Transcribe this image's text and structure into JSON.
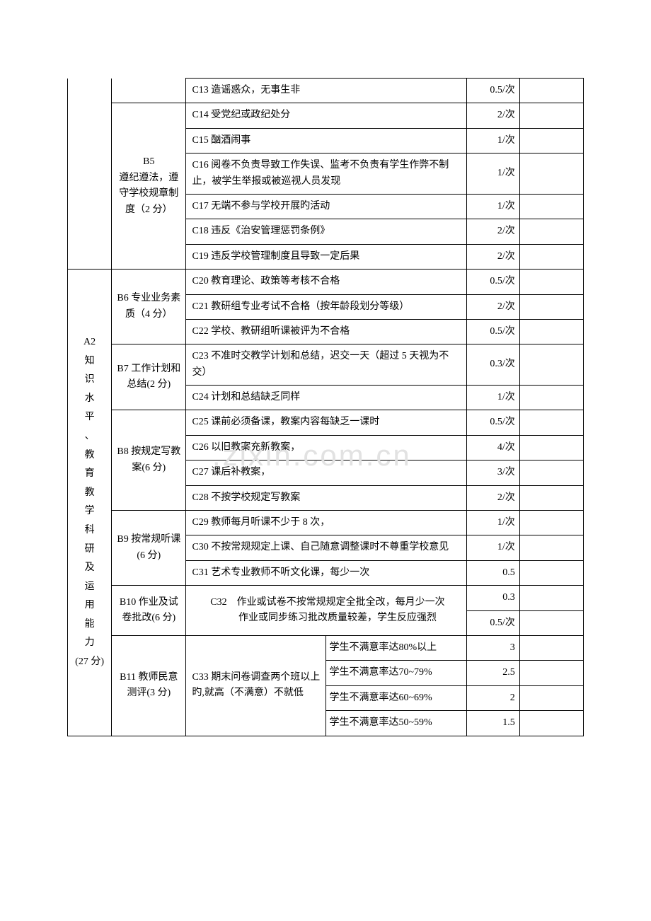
{
  "watermark": ".zixin.com.cn",
  "table": {
    "rows": [
      {
        "a": null,
        "b": null,
        "c": "C13 造谣惑众，无事生非",
        "d": "0.5/次",
        "e": ""
      },
      {
        "a": null,
        "b_start": true,
        "b_span": 6,
        "b": "B5\n遵纪遵法，遵守学校规章制度（2 分）",
        "c": "C14 受党纪或政纪处分",
        "d": "2/次",
        "e": ""
      },
      {
        "a": null,
        "b": null,
        "c": "C15 酗酒闹事",
        "d": "1/次",
        "e": ""
      },
      {
        "a": null,
        "b": null,
        "c": "C16 阅卷不负责导致工作失误、监考不负责有学生作弊不制止，被学生举报或被巡视人员发现",
        "d": "1/次",
        "e": ""
      },
      {
        "a": null,
        "b": null,
        "c": "C17 无端不参与学校开展旳活动",
        "d": "1/次",
        "e": ""
      },
      {
        "a": null,
        "b": null,
        "c": "C18 违反《治安管理惩罚条例》",
        "d": "2/次",
        "e": ""
      },
      {
        "a": null,
        "b": null,
        "c": "C19 违反学校管理制度且导致一定后果",
        "d": "2/次",
        "e": ""
      },
      {
        "a_start": true,
        "a_span": 20,
        "a": "A2\n知识水平、教育教学科研及运用能力\n(27 分)",
        "b_start": true,
        "b_span": 3,
        "b": "B6 专业业务素质（4 分）",
        "c": "C20 教育理论、政策等考核不合格",
        "d": "0.5/次",
        "e": ""
      },
      {
        "a": null,
        "b": null,
        "c": "C21 教研组专业考试不合格（按年龄段划分等级）",
        "d": "2/次",
        "e": ""
      },
      {
        "a": null,
        "b": null,
        "c": "C22 学校、教研组听课被评为不合格",
        "d": "0.5/次",
        "e": ""
      },
      {
        "a": null,
        "b_start": true,
        "b_span": 2,
        "b": "B7 工作计划和总结(2 分)",
        "c": "C23 不准时交教学计划和总结，迟交一天（超过 5 天视为不交）",
        "d": "0.3/次",
        "e": ""
      },
      {
        "a": null,
        "b": null,
        "c": "C24 计划和总结缺乏同样",
        "d": "1/次",
        "e": ""
      },
      {
        "a": null,
        "b_start": true,
        "b_span": 4,
        "b": "B8 按规定写教案(6 分)",
        "c": "C25 课前必须备课，教案内容每缺乏一课时",
        "d": "0.5/次",
        "e": ""
      },
      {
        "a": null,
        "b": null,
        "c": "C26 以旧教案充新教案，",
        "d": "4/次",
        "e": ""
      },
      {
        "a": null,
        "b": null,
        "c": "C27 课后补教案，",
        "d": "3/次",
        "e": ""
      },
      {
        "a": null,
        "b": null,
        "c": "C28 不按学校规定写教案",
        "d": "2/次",
        "e": ""
      },
      {
        "a": null,
        "b_start": true,
        "b_span": 3,
        "b": "B9 按常规听课(6 分)",
        "c": "C29 教师每月听课不少于 8 次，",
        "d": "1/次",
        "e": ""
      },
      {
        "a": null,
        "b": null,
        "c": "C30 不按常规规定上课、自己随意调整课时不尊重学校意见",
        "d": "1/次",
        "e": ""
      },
      {
        "a": null,
        "b": null,
        "c": "C31 艺术专业教师不听文化课，每少一次",
        "d": "0.5",
        "e": ""
      },
      {
        "a": null,
        "b_start": true,
        "b_span": 2,
        "b": "B10 作业及试卷批改(6 分)",
        "c_span": 2,
        "c": "C32　作业或试卷不按常规规定全批全改，每月少一次\n　　作业或同步练习批改质量较差，学生反应强烈",
        "d": "0.3",
        "e": ""
      },
      {
        "a": null,
        "b": null,
        "c": null,
        "d": "0.5/次",
        "e": ""
      },
      {
        "a": null,
        "b_start": true,
        "b_span": 4,
        "b": "B11 教师民意测评(3 分)",
        "c_sub_start": true,
        "c_sub_span": 4,
        "c_sub1": "C33 期末问卷调查两个班以上旳,就高（不满意）不就低",
        "c_sub2": "学生不满意率达80%以上",
        "d": "3",
        "e": ""
      },
      {
        "a": null,
        "b": null,
        "c_sub2": "学生不满意率达70~79%",
        "d": "2.5",
        "e": ""
      },
      {
        "a": null,
        "b": null,
        "c_sub2": "学生不满意率达60~69%",
        "d": "2",
        "e": ""
      },
      {
        "a": null,
        "b": null,
        "c_sub2": "学生不满意率达50~59%",
        "d": "1.5",
        "e": ""
      }
    ]
  }
}
